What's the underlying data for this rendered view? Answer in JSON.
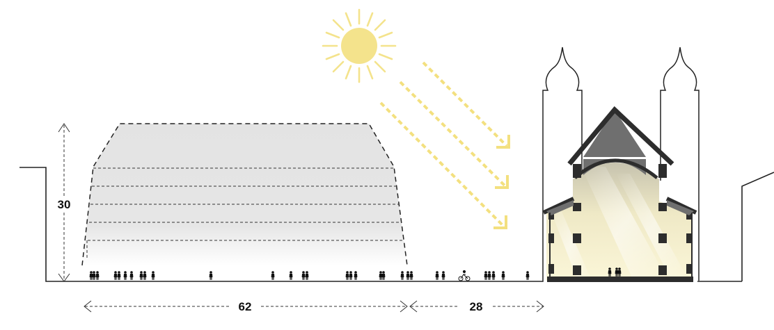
{
  "dimensions": {
    "height_value": "30",
    "width_left_value": "62",
    "width_right_value": "28"
  },
  "colors": {
    "sun": "#f4e38c",
    "sun_rays": "#f3e07f",
    "building_fill": "#e6e6e6",
    "church_wall": "#2d2d2d",
    "roof": "#6f6f6f",
    "church_interior_light": "#fbf6d8",
    "lines": "#222222"
  },
  "icons": {
    "sun": "sun-icon",
    "sunlight": "sunlight-arrow-icon",
    "people": "pedestrian-figure-icon",
    "cyclist": "cyclist-icon"
  }
}
